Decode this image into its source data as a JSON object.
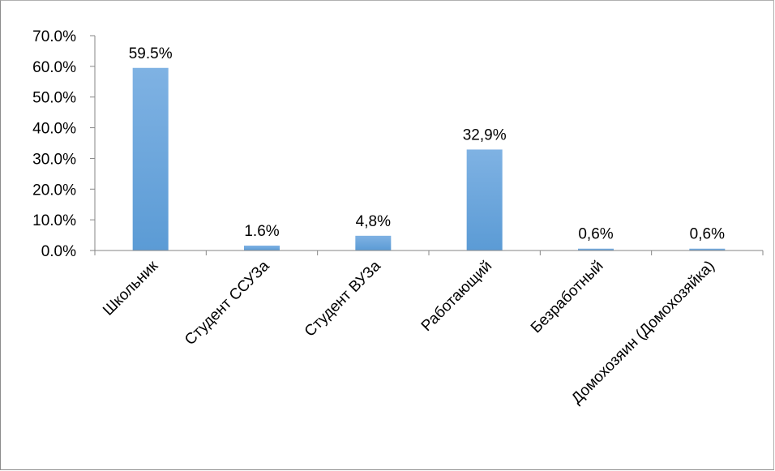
{
  "chart_data": {
    "type": "bar",
    "categories": [
      "Школьник",
      "Студент ССУЗа",
      "Студент ВУЗа",
      "Работающий",
      "Безработный",
      "Домохозяин (Домохозяйка)"
    ],
    "values": [
      59.5,
      1.6,
      4.8,
      32.9,
      0.6,
      0.6
    ],
    "data_labels": [
      "59.5%",
      "1.6%",
      "4,8%",
      "32,9%",
      "0,6%",
      "0,6%"
    ],
    "y_ticks": [
      0,
      10,
      20,
      30,
      40,
      50,
      60,
      70
    ],
    "y_tick_labels": [
      "0.0%",
      "10.0%",
      "20.0%",
      "30.0%",
      "40.0%",
      "50.0%",
      "60.0%",
      "70.0%"
    ],
    "ylim": [
      0,
      70
    ],
    "title": "",
    "xlabel": "",
    "ylabel": "",
    "grid": false,
    "legend": "none",
    "colors": {
      "bar": "#5b9bd5",
      "bar_light": "#7fb2e3",
      "axis": "#868686"
    }
  }
}
